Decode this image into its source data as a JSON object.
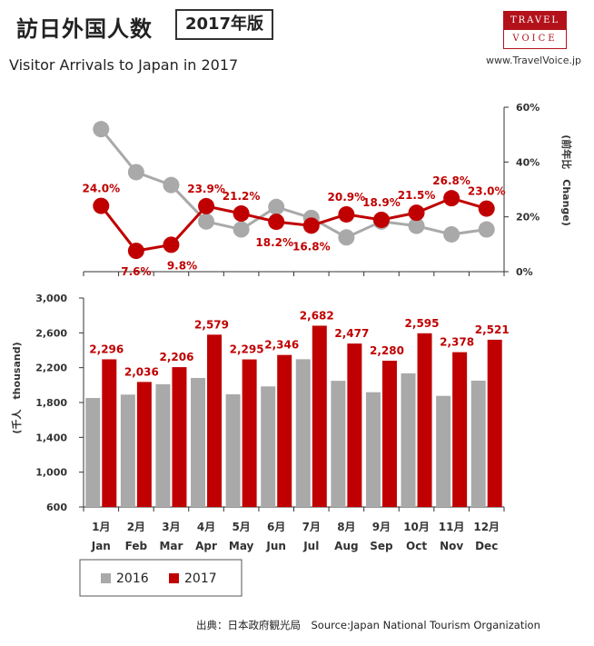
{
  "header": {
    "title_jp": "訪日外国人数",
    "edition": "2017年版",
    "subtitle": "Visitor Arrivals to Japan in 2017",
    "logo_top": "TRAVEL",
    "logo_bottom": "VOICE",
    "url": "www.TravelVoice.jp"
  },
  "footer": {
    "source": "出典：日本政府観光局　Source:Japan  National Tourism  Organization"
  },
  "colors": {
    "s2016": "#a9a9a9",
    "s2017": "#c00000",
    "axis": "#333333"
  },
  "chart_data": [
    {
      "type": "line",
      "categories": [
        "Jan",
        "Feb",
        "Mar",
        "Apr",
        "May",
        "Jun",
        "Jul",
        "Aug",
        "Sep",
        "Oct",
        "Nov",
        "Dec"
      ],
      "ylabel": "(前年比　Change)",
      "ylim": [
        0,
        60
      ],
      "y_ticks": [
        "0%",
        "20%",
        "40%",
        "60%"
      ],
      "series": [
        {
          "values": [
            52.0,
            36.3,
            31.6,
            18.3,
            15.4,
            23.6,
            19.6,
            12.5,
            18.3,
            16.7,
            13.6,
            15.4
          ]
        },
        {
          "values": [
            24.0,
            7.6,
            9.8,
            23.9,
            21.2,
            18.2,
            16.8,
            20.9,
            18.9,
            21.5,
            26.8,
            23.0
          ],
          "labels": [
            "24.0%",
            "7.6%",
            "9.8%",
            "23.9%",
            "21.2%",
            "18.2%",
            "16.8%",
            "20.9%",
            "18.9%",
            "21.5%",
            "26.8%",
            "23.0%"
          ]
        }
      ],
      "grid": false
    },
    {
      "type": "bar",
      "categories_jp": [
        "1月",
        "2月",
        "3月",
        "4月",
        "5月",
        "6月",
        "7月",
        "8月",
        "9月",
        "10月",
        "11月",
        "12月"
      ],
      "categories": [
        "Jan",
        "Feb",
        "Mar",
        "Apr",
        "May",
        "Jun",
        "Jul",
        "Aug",
        "Sep",
        "Oct",
        "Nov",
        "Dec"
      ],
      "ylabel": "(千人　thousand)",
      "ylim": [
        600,
        3000
      ],
      "y_ticks": [
        "600",
        "1,000",
        "1,400",
        "1,800",
        "2,200",
        "2,600",
        "3,000"
      ],
      "series": [
        {
          "name": "2016",
          "values": [
            1852,
            1891,
            2010,
            2082,
            1894,
            1985,
            2297,
            2049,
            1918,
            2135,
            1876,
            2051
          ]
        },
        {
          "name": "2017",
          "values": [
            2296,
            2036,
            2206,
            2579,
            2295,
            2346,
            2682,
            2477,
            2280,
            2595,
            2378,
            2521
          ],
          "labels": [
            "2,296",
            "2,036",
            "2,206",
            "2,579",
            "2,295",
            "2,346",
            "2,682",
            "2,477",
            "2,280",
            "2,595",
            "2,378",
            "2,521"
          ]
        }
      ],
      "legend": "bottom-left",
      "grid": false
    }
  ]
}
